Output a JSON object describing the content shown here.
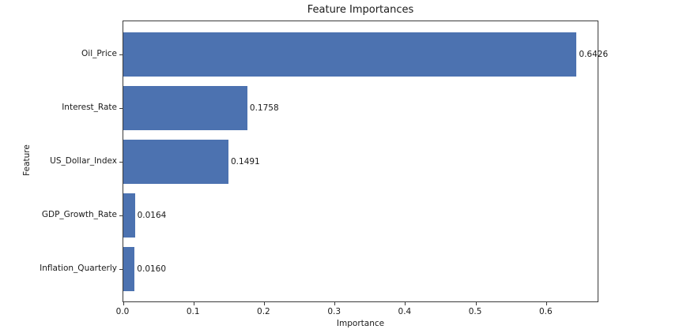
{
  "chart_data": {
    "type": "bar",
    "orientation": "horizontal",
    "title": "Feature Importances",
    "xlabel": "Importance",
    "ylabel": "Feature",
    "categories": [
      "Oil_Price",
      "Interest_Rate",
      "US_Dollar_Index",
      "GDP_Growth_Rate",
      "Inflation_Quarterly"
    ],
    "values": [
      0.6426,
      0.1758,
      0.1491,
      0.0164,
      0.016
    ],
    "value_labels": [
      "0.6426",
      "0.1758",
      "0.1491",
      "0.0164",
      "0.0160"
    ],
    "xlim": [
      0.0,
      0.6747
    ],
    "xticks": [
      0.0,
      0.1,
      0.2,
      0.3,
      0.4,
      0.5,
      0.6
    ],
    "xtick_labels": [
      "0.0",
      "0.1",
      "0.2",
      "0.3",
      "0.4",
      "0.5",
      "0.6"
    ],
    "bar_color": "#4c72b0",
    "spine_color": "#3a3a3a",
    "background_color": "#ffffff",
    "grid": false,
    "legend": null
  }
}
